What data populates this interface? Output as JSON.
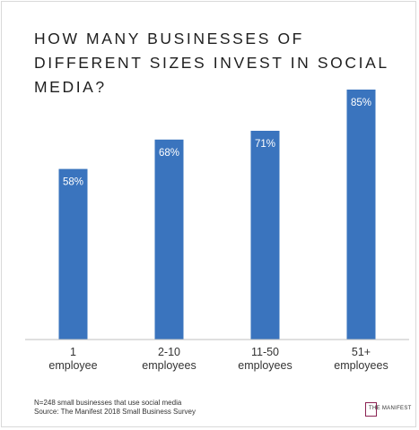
{
  "title": "HOW MANY BUSINESSES OF DIFFERENT SIZES INVEST IN SOCIAL MEDIA?",
  "chart_data": {
    "type": "bar",
    "title": "HOW MANY BUSINESSES OF DIFFERENT SIZES INVEST IN SOCIAL MEDIA?",
    "categories": [
      [
        "1",
        "employee"
      ],
      [
        "2-10",
        "employees"
      ],
      [
        "11-50",
        "employees"
      ],
      [
        "51+",
        "employees"
      ]
    ],
    "values": [
      58,
      68,
      71,
      85
    ],
    "value_labels": [
      "58%",
      "68%",
      "71%",
      "85%"
    ],
    "value_suffix": "%",
    "ylim": [
      0,
      100
    ],
    "grid": false,
    "bar_color": "#3a74be",
    "label_color": "#ffffff"
  },
  "footnote": {
    "line1": "N=248 small businesses that use social media",
    "line2": "Source: The Manifest 2018 Small Business Survey"
  },
  "logo": {
    "text": "THE MANIFEST",
    "color": "#8b2252"
  }
}
